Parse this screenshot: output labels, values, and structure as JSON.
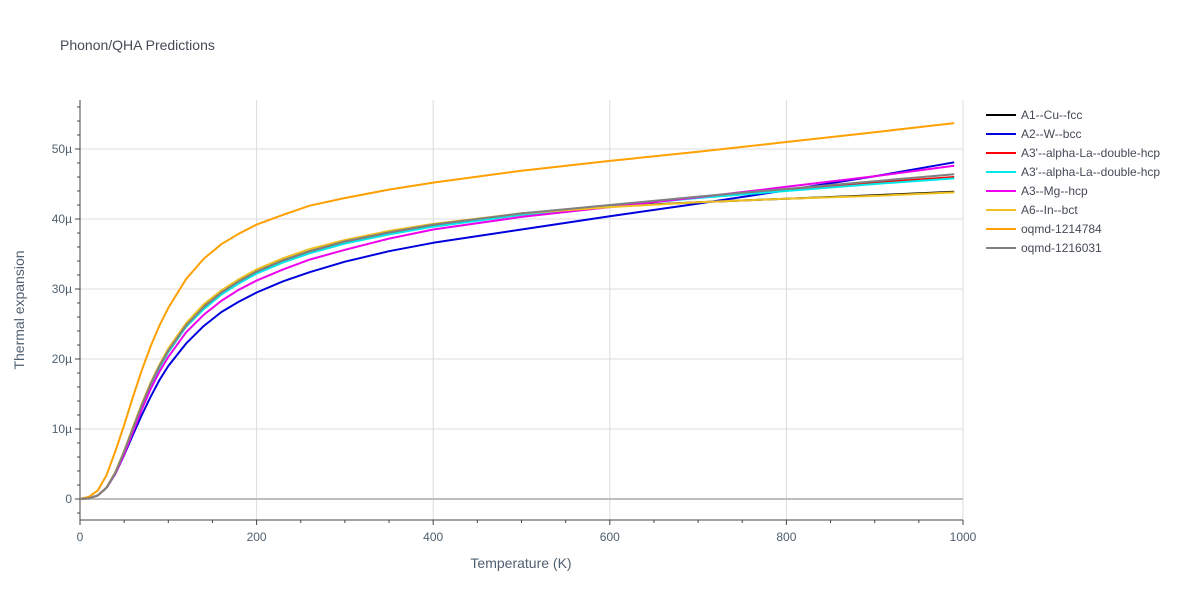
{
  "chart_data": {
    "type": "line",
    "title": "Phonon/QHA Predictions",
    "xlabel": "Temperature (K)",
    "ylabel": "Thermal expansion",
    "xlim": [
      0,
      1000
    ],
    "ylim": [
      -3,
      57
    ],
    "y_unit_suffix": "µ",
    "x_ticks": [
      0,
      200,
      400,
      600,
      800,
      1000
    ],
    "y_ticks": [
      0,
      10,
      20,
      30,
      40,
      50
    ],
    "y_tick_labels": [
      "0",
      "10µ",
      "20µ",
      "30µ",
      "40µ",
      "50µ"
    ],
    "grid": true,
    "legend_position": "right",
    "x": [
      0,
      10,
      20,
      30,
      40,
      50,
      60,
      70,
      80,
      90,
      100,
      120,
      140,
      160,
      180,
      200,
      230,
      260,
      300,
      350,
      400,
      500,
      600,
      700,
      800,
      900,
      990
    ],
    "series": [
      {
        "name": "A1--Cu--fcc",
        "color": "#000000",
        "values": [
          0,
          0.1,
          0.5,
          1.6,
          3.8,
          6.8,
          10.2,
          13.5,
          16.5,
          19.1,
          21.3,
          24.9,
          27.5,
          29.5,
          31.1,
          32.5,
          34.1,
          35.4,
          36.8,
          38.1,
          39.2,
          40.8,
          41.8,
          42.4,
          42.9,
          43.4,
          43.9
        ]
      },
      {
        "name": "A2--W--bcc",
        "color": "#0000dd",
        "values": [
          0,
          0.1,
          0.5,
          1.6,
          3.6,
          6.3,
          9.2,
          12.0,
          14.6,
          17.0,
          19.0,
          22.2,
          24.7,
          26.7,
          28.2,
          29.5,
          31.1,
          32.4,
          33.9,
          35.4,
          36.6,
          38.5,
          40.4,
          42.2,
          44.1,
          46.1,
          48.1
        ]
      },
      {
        "name": "A3'--alpha-La--double-hcp",
        "color": "#ff0000",
        "values": [
          0,
          0.1,
          0.5,
          1.6,
          3.7,
          6.7,
          10.0,
          13.3,
          16.2,
          18.8,
          21.0,
          24.6,
          27.2,
          29.3,
          30.9,
          32.3,
          33.9,
          35.2,
          36.6,
          37.9,
          39.0,
          40.6,
          41.9,
          43.1,
          44.2,
          45.2,
          46.0
        ]
      },
      {
        "name": "A3'--alpha-La--double-hcp",
        "color": "#00e8e8",
        "values": [
          0,
          0.1,
          0.5,
          1.6,
          3.7,
          6.7,
          10.0,
          13.3,
          16.2,
          18.8,
          21.0,
          24.6,
          27.1,
          29.2,
          30.8,
          32.2,
          33.8,
          35.1,
          36.5,
          37.8,
          38.9,
          40.6,
          41.8,
          43.0,
          44.0,
          45.0,
          45.8
        ]
      },
      {
        "name": "A3--Mg--hcp",
        "color": "#ee00ee",
        "values": [
          0,
          0.1,
          0.5,
          1.6,
          3.6,
          6.4,
          9.6,
          12.8,
          15.7,
          18.2,
          20.3,
          23.8,
          26.3,
          28.3,
          29.9,
          31.2,
          32.8,
          34.2,
          35.6,
          37.2,
          38.5,
          40.3,
          41.7,
          43.1,
          44.6,
          46.1,
          47.6
        ]
      },
      {
        "name": "A6--In--bct",
        "color": "#f0c020",
        "values": [
          0,
          0.1,
          0.5,
          1.6,
          3.8,
          6.9,
          10.3,
          13.6,
          16.6,
          19.2,
          21.5,
          25.1,
          27.8,
          29.8,
          31.4,
          32.8,
          34.4,
          35.7,
          37.0,
          38.3,
          39.3,
          40.8,
          41.7,
          42.4,
          42.9,
          43.3,
          43.8
        ]
      },
      {
        "name": "oqmd-1214784",
        "color": "#ffa000",
        "values": [
          0,
          0.3,
          1.2,
          3.4,
          6.8,
          10.6,
          14.6,
          18.4,
          21.8,
          24.8,
          27.3,
          31.4,
          34.3,
          36.4,
          37.9,
          39.2,
          40.6,
          41.9,
          43.0,
          44.2,
          45.2,
          46.9,
          48.3,
          49.6,
          51.0,
          52.4,
          53.7
        ]
      },
      {
        "name": "oqmd-1216031",
        "color": "#808080",
        "values": [
          0,
          0.1,
          0.5,
          1.6,
          3.7,
          6.8,
          10.1,
          13.4,
          16.4,
          19.0,
          21.2,
          24.8,
          27.4,
          29.5,
          31.1,
          32.5,
          34.1,
          35.4,
          36.8,
          38.1,
          39.2,
          40.8,
          42.0,
          43.2,
          44.3,
          45.4,
          46.4
        ]
      }
    ]
  }
}
